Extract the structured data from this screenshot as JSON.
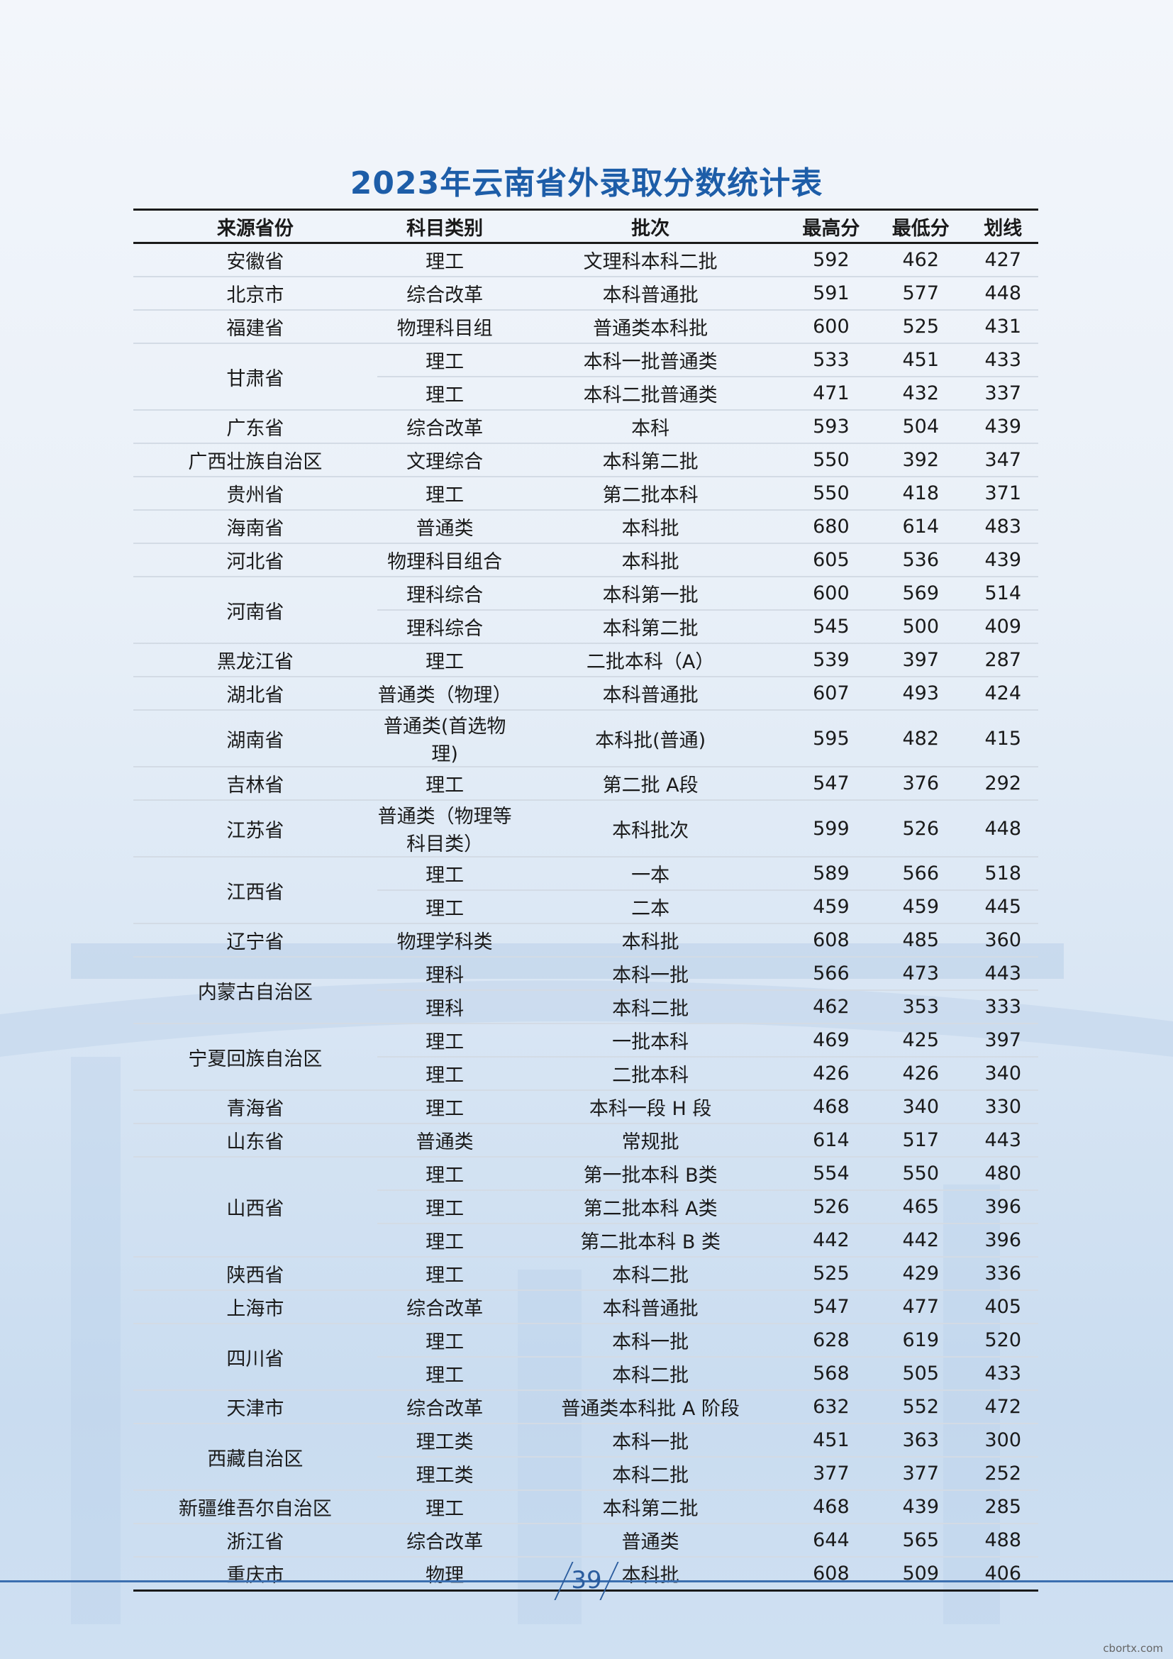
{
  "title": "2023年云南省外录取分数统计表",
  "headers": [
    "来源省份",
    "科目类别",
    "批次",
    "最高分",
    "最低分",
    "划线"
  ],
  "groups": [
    {
      "province": "安徽省",
      "rows": [
        [
          "理工",
          "文理科本科二批",
          "592",
          "462",
          "427"
        ]
      ]
    },
    {
      "province": "北京市",
      "rows": [
        [
          "综合改革",
          "本科普通批",
          "591",
          "577",
          "448"
        ]
      ]
    },
    {
      "province": "福建省",
      "rows": [
        [
          "物理科目组",
          "普通类本科批",
          "600",
          "525",
          "431"
        ]
      ]
    },
    {
      "province": "甘肃省",
      "rows": [
        [
          "理工",
          "本科一批普通类",
          "533",
          "451",
          "433"
        ],
        [
          "理工",
          "本科二批普通类",
          "471",
          "432",
          "337"
        ]
      ]
    },
    {
      "province": "广东省",
      "rows": [
        [
          "综合改革",
          "本科",
          "593",
          "504",
          "439"
        ]
      ]
    },
    {
      "province": "广西壮族自治区",
      "rows": [
        [
          "文理综合",
          "本科第二批",
          "550",
          "392",
          "347"
        ]
      ]
    },
    {
      "province": "贵州省",
      "rows": [
        [
          "理工",
          "第二批本科",
          "550",
          "418",
          "371"
        ]
      ]
    },
    {
      "province": "海南省",
      "rows": [
        [
          "普通类",
          "本科批",
          "680",
          "614",
          "483"
        ]
      ]
    },
    {
      "province": "河北省",
      "rows": [
        [
          "物理科目组合",
          "本科批",
          "605",
          "536",
          "439"
        ]
      ]
    },
    {
      "province": "河南省",
      "rows": [
        [
          "理科综合",
          "本科第一批",
          "600",
          "569",
          "514"
        ],
        [
          "理科综合",
          "本科第二批",
          "545",
          "500",
          "409"
        ]
      ]
    },
    {
      "province": "黑龙江省",
      "rows": [
        [
          "理工",
          "二批本科（A）",
          "539",
          "397",
          "287"
        ]
      ]
    },
    {
      "province": "湖北省",
      "rows": [
        [
          "普通类（物理）",
          "本科普通批",
          "607",
          "493",
          "424"
        ]
      ]
    },
    {
      "province": "湖南省",
      "rows": [
        [
          "普通类(首选物理)",
          "本科批(普通)",
          "595",
          "482",
          "415"
        ]
      ]
    },
    {
      "province": "吉林省",
      "rows": [
        [
          "理工",
          "第二批 A段",
          "547",
          "376",
          "292"
        ]
      ]
    },
    {
      "province": "江苏省",
      "rows": [
        [
          "普通类（物理等科目类）",
          "本科批次",
          "599",
          "526",
          "448"
        ]
      ]
    },
    {
      "province": "江西省",
      "rows": [
        [
          "理工",
          "一本",
          "589",
          "566",
          "518"
        ],
        [
          "理工",
          "二本",
          "459",
          "459",
          "445"
        ]
      ]
    },
    {
      "province": "辽宁省",
      "rows": [
        [
          "物理学科类",
          "本科批",
          "608",
          "485",
          "360"
        ]
      ]
    },
    {
      "province": "内蒙古自治区",
      "rows": [
        [
          "理科",
          "本科一批",
          "566",
          "473",
          "443"
        ],
        [
          "理科",
          "本科二批",
          "462",
          "353",
          "333"
        ]
      ]
    },
    {
      "province": "宁夏回族自治区",
      "rows": [
        [
          "理工",
          "一批本科",
          "469",
          "425",
          "397"
        ],
        [
          "理工",
          "二批本科",
          "426",
          "426",
          "340"
        ]
      ]
    },
    {
      "province": "青海省",
      "rows": [
        [
          "理工",
          "本科一段 H 段",
          "468",
          "340",
          "330"
        ]
      ]
    },
    {
      "province": "山东省",
      "rows": [
        [
          "普通类",
          "常规批",
          "614",
          "517",
          "443"
        ]
      ]
    },
    {
      "province": "山西省",
      "rows": [
        [
          "理工",
          "第一批本科 B类",
          "554",
          "550",
          "480"
        ],
        [
          "理工",
          "第二批本科 A类",
          "526",
          "465",
          "396"
        ],
        [
          "理工",
          "第二批本科 B 类",
          "442",
          "442",
          "396"
        ]
      ]
    },
    {
      "province": "陕西省",
      "rows": [
        [
          "理工",
          "本科二批",
          "525",
          "429",
          "336"
        ]
      ]
    },
    {
      "province": "上海市",
      "rows": [
        [
          "综合改革",
          "本科普通批",
          "547",
          "477",
          "405"
        ]
      ]
    },
    {
      "province": "四川省",
      "rows": [
        [
          "理工",
          "本科一批",
          "628",
          "619",
          "520"
        ],
        [
          "理工",
          "本科二批",
          "568",
          "505",
          "433"
        ]
      ]
    },
    {
      "province": "天津市",
      "rows": [
        [
          "综合改革",
          "普通类本科批 A 阶段",
          "632",
          "552",
          "472"
        ]
      ]
    },
    {
      "province": "西藏自治区",
      "rows": [
        [
          "理工类",
          "本科一批",
          "451",
          "363",
          "300"
        ],
        [
          "理工类",
          "本科二批",
          "377",
          "377",
          "252"
        ]
      ]
    },
    {
      "province": "新疆维吾尔自治区",
      "rows": [
        [
          "理工",
          "本科第二批",
          "468",
          "439",
          "285"
        ]
      ]
    },
    {
      "province": "浙江省",
      "rows": [
        [
          "综合改革",
          "普通类",
          "644",
          "565",
          "488"
        ]
      ]
    },
    {
      "province": "重庆市",
      "rows": [
        [
          "物理",
          "本科批",
          "608",
          "509",
          "406"
        ]
      ]
    }
  ],
  "page_number": "39",
  "watermark": "cbortx.com",
  "colors": {
    "title": "#1d5da8",
    "rule": "#1a1a1a",
    "accent_line": "#3b6fb0"
  }
}
